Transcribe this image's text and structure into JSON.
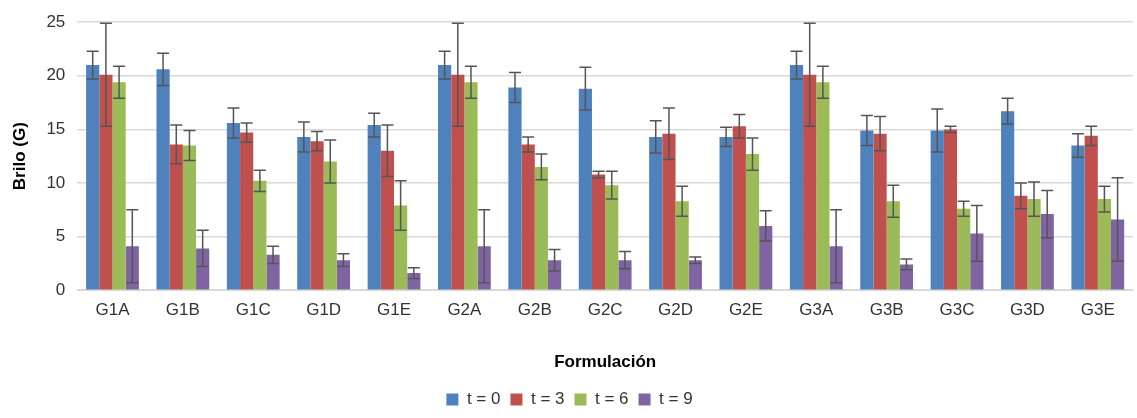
{
  "chart_data": {
    "type": "bar",
    "xlabel": "Formulación",
    "ylabel": "Brilo (G)",
    "categories": [
      "G1A",
      "G1B",
      "G1C",
      "G1D",
      "G1E",
      "G2A",
      "G2B",
      "G2C",
      "G2D",
      "G2E",
      "G3A",
      "G3B",
      "G3C",
      "G3D",
      "G3E"
    ],
    "series": [
      {
        "name": "t = 0",
        "color": "#4f81bd",
        "values": [
          21.0,
          20.6,
          15.6,
          14.3,
          15.4,
          21.0,
          18.9,
          18.8,
          14.3,
          14.3,
          21.0,
          14.9,
          14.9,
          16.7,
          13.5
        ],
        "errors": [
          1.3,
          1.5,
          1.4,
          1.4,
          1.1,
          1.3,
          1.4,
          2.0,
          1.5,
          0.9,
          1.3,
          1.4,
          2.0,
          1.2,
          1.1
        ]
      },
      {
        "name": "t = 3",
        "color": "#c0504d",
        "values": [
          20.1,
          13.6,
          14.7,
          13.9,
          13.0,
          20.1,
          13.6,
          10.8,
          14.6,
          15.3,
          20.1,
          14.6,
          15.0,
          8.8,
          14.4
        ],
        "errors": [
          4.8,
          1.8,
          0.9,
          0.9,
          2.4,
          4.8,
          0.7,
          0.3,
          2.4,
          1.1,
          4.8,
          1.6,
          0.3,
          1.2,
          0.9
        ]
      },
      {
        "name": "t = 6",
        "color": "#9bbb59",
        "values": [
          19.4,
          13.5,
          10.2,
          12.0,
          7.9,
          19.4,
          11.5,
          9.8,
          8.3,
          12.7,
          19.4,
          8.3,
          7.6,
          8.5,
          8.5
        ],
        "errors": [
          1.5,
          1.4,
          1.0,
          2.0,
          2.3,
          1.5,
          1.2,
          1.3,
          1.4,
          1.5,
          1.5,
          1.5,
          0.7,
          1.6,
          1.2
        ]
      },
      {
        "name": "t = 9",
        "color": "#8064a2",
        "values": [
          4.1,
          3.9,
          3.3,
          2.8,
          1.6,
          4.1,
          2.8,
          2.8,
          2.8,
          6.0,
          4.1,
          2.4,
          5.3,
          7.1,
          6.6
        ],
        "errors": [
          3.4,
          1.7,
          0.8,
          0.6,
          0.5,
          3.4,
          1.0,
          0.8,
          0.3,
          1.4,
          3.4,
          0.5,
          2.6,
          2.2,
          3.9
        ]
      }
    ],
    "ylim": [
      0,
      25
    ],
    "yticks": [
      0,
      5,
      10,
      15,
      20,
      25
    ],
    "grid": "y",
    "legend": "bottom"
  }
}
